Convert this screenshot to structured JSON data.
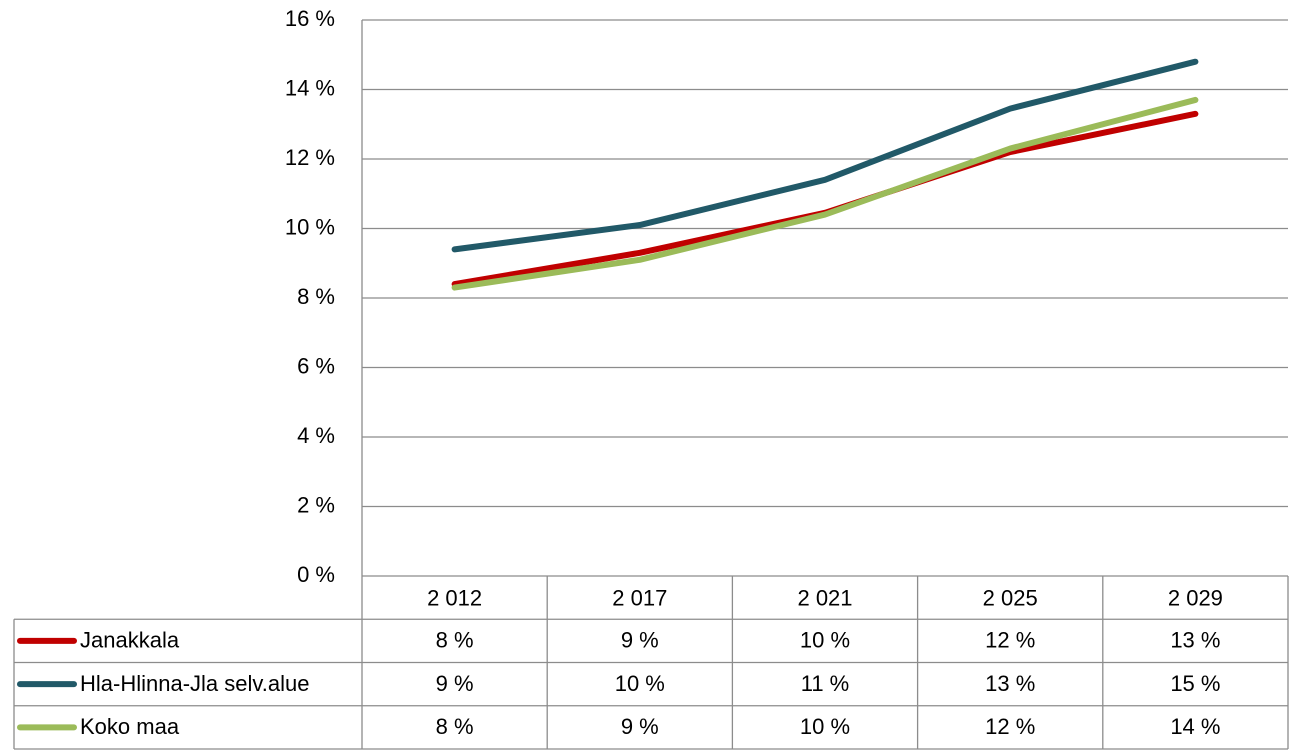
{
  "chart_data": {
    "type": "line",
    "categories": [
      "2 012",
      "2 017",
      "2 021",
      "2 025",
      "2 029"
    ],
    "series": [
      {
        "name": "Janakkala",
        "color": "#c00000",
        "values": [
          8.4,
          9.3,
          10.45,
          12.2,
          13.3
        ],
        "value_labels": [
          "8 %",
          "9 %",
          "10 %",
          "12 %",
          "13 %"
        ]
      },
      {
        "name": "Hla-Hlinna-Jla selv.alue",
        "color": "#215968",
        "values": [
          9.4,
          10.1,
          11.4,
          13.45,
          14.8
        ],
        "value_labels": [
          "9 %",
          "10 %",
          "11 %",
          "13 %",
          "15 %"
        ]
      },
      {
        "name": "Koko maa",
        "color": "#9bbb59",
        "values": [
          8.3,
          9.1,
          10.4,
          12.3,
          13.7
        ],
        "value_labels": [
          "8 %",
          "9 %",
          "10 %",
          "12 %",
          "14 %"
        ]
      }
    ],
    "ylim": [
      0,
      16
    ],
    "yticks": [
      {
        "value": 0,
        "label": "0 %"
      },
      {
        "value": 2,
        "label": "2 %"
      },
      {
        "value": 4,
        "label": "4 %"
      },
      {
        "value": 6,
        "label": "6 %"
      },
      {
        "value": 8,
        "label": "8 %"
      },
      {
        "value": 10,
        "label": "10 %"
      },
      {
        "value": 12,
        "label": "12 %"
      },
      {
        "value": 14,
        "label": "14 %"
      },
      {
        "value": 16,
        "label": "16 %"
      }
    ],
    "grid": true
  }
}
